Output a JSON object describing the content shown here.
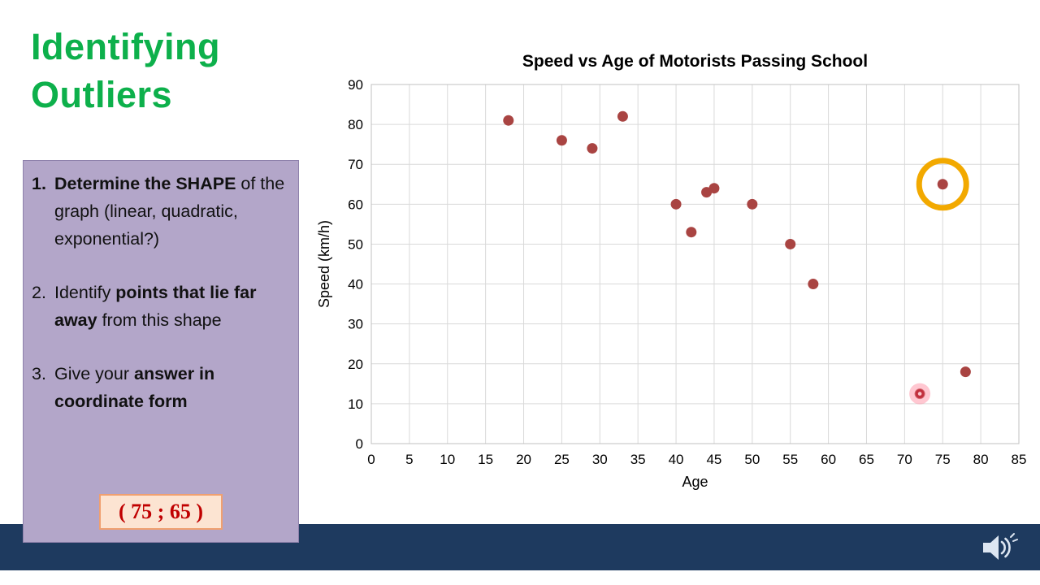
{
  "theme": {
    "title_green": "#0db04b",
    "panel_purple": "#b3a6c9",
    "panel_border": "#8e81ab",
    "answer_bg": "#fce4d2",
    "answer_border": "#f0a070",
    "answer_text": "#c00000",
    "bottom_bar": "#1e3a5f",
    "point_color": "#a94442",
    "grid_color": "#d9d9d9",
    "plot_border": "#c0c0c0",
    "outlier_ring": "#f2a900",
    "highlight_pink": "#ff8fa3",
    "highlight_dot": "#c22f3d",
    "speaker_color": "#dde6f2"
  },
  "header": {
    "title_line1": "Identifying",
    "title_line2": "Outliers"
  },
  "instructions": {
    "steps": [
      {
        "num": "1.",
        "num_bold": true,
        "parts": [
          {
            "text": "Determine the SHAPE",
            "bold": true
          },
          {
            "text": " of the graph (linear, quadratic, exponential?)",
            "bold": false
          }
        ]
      },
      {
        "num": "2.",
        "num_bold": false,
        "parts": [
          {
            "text": "Identify ",
            "bold": false
          },
          {
            "text": "points that lie far away",
            "bold": true
          },
          {
            "text": " from this shape",
            "bold": false
          }
        ]
      },
      {
        "num": "3.",
        "num_bold": false,
        "parts": [
          {
            "text": "Give your ",
            "bold": false
          },
          {
            "text": "answer in coordinate form",
            "bold": true
          }
        ]
      }
    ],
    "answer": "( 75 ; 65 )"
  },
  "chart_data": {
    "type": "scatter",
    "title": "Speed vs Age of Motorists Passing School",
    "xlabel": "Age",
    "ylabel": "Speed (km/h)",
    "xlim": [
      0,
      85
    ],
    "xstep": 5,
    "ylim": [
      0,
      90
    ],
    "ystep": 10,
    "grid": true,
    "legend": "none",
    "points": [
      [
        18,
        81
      ],
      [
        25,
        76
      ],
      [
        29,
        74
      ],
      [
        33,
        82
      ],
      [
        40,
        60
      ],
      [
        42,
        53
      ],
      [
        44,
        63
      ],
      [
        45,
        64
      ],
      [
        50,
        60
      ],
      [
        55,
        50
      ],
      [
        58,
        40
      ],
      [
        75,
        65
      ],
      [
        78,
        18
      ],
      [
        72,
        12.5
      ]
    ],
    "annotations": {
      "outlier_circle": {
        "x": 75,
        "y": 65,
        "label": "circled outlier"
      },
      "pointer_highlight": {
        "x": 72,
        "y": 12.5,
        "label": "laser pointer highlight"
      }
    }
  },
  "footer": {
    "speaker_icon": "speaker-with-sound-waves"
  }
}
